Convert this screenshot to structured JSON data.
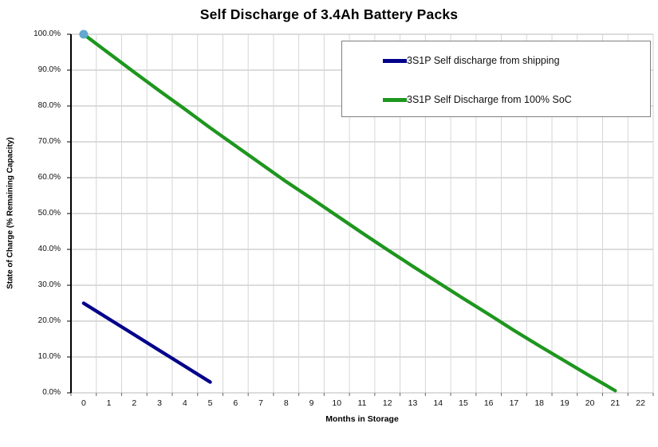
{
  "chart_data": {
    "type": "line",
    "title": "Self Discharge of 3.4Ah Battery Packs",
    "xlabel": "Months in Storage",
    "ylabel": "State of Charge (% Remaining Capacity)",
    "xlim": [
      0,
      22
    ],
    "ylim": [
      0,
      100
    ],
    "grid": true,
    "legend_position": "top-right",
    "x_ticks": [
      0,
      1,
      2,
      3,
      4,
      5,
      6,
      7,
      8,
      9,
      10,
      11,
      12,
      13,
      14,
      15,
      16,
      17,
      18,
      19,
      20,
      21,
      22
    ],
    "y_ticks": [
      "0.0%",
      "10.0%",
      "20.0%",
      "30.0%",
      "40.0%",
      "50.0%",
      "60.0%",
      "70.0%",
      "80.0%",
      "90.0%",
      "100.0%"
    ],
    "series": [
      {
        "name": "3S1P Self discharge from shipping",
        "color": "#00008B",
        "x": [
          0,
          1,
          2,
          3,
          4,
          5
        ],
        "values": [
          25.0,
          20.6,
          16.2,
          11.8,
          7.4,
          3.0
        ]
      },
      {
        "name": "3S1P Self Discharge from 100% SoC",
        "color": "#1E961E",
        "x": [
          0,
          1,
          2,
          3,
          4,
          5,
          6,
          7,
          8,
          9,
          10,
          11,
          12,
          13,
          14,
          15,
          16,
          17,
          18,
          19,
          20,
          21
        ],
        "values": [
          100.0,
          94.7,
          89.4,
          84.2,
          79.1,
          73.9,
          68.9,
          63.9,
          58.9,
          54.2,
          49.4,
          44.6,
          39.9,
          35.3,
          30.8,
          26.3,
          21.9,
          17.4,
          13.1,
          8.9,
          4.7,
          0.6
        ],
        "start_marker": {
          "shape": "circle",
          "color": "#62A8D0"
        }
      }
    ]
  }
}
